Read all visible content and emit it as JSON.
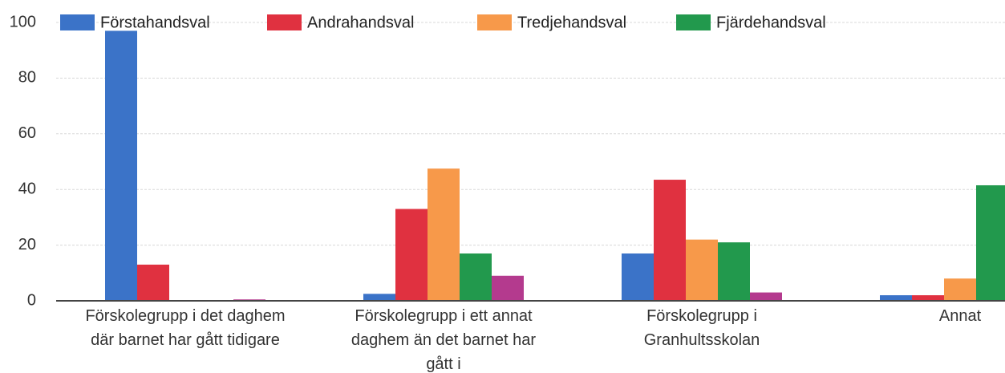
{
  "chart_data": {
    "type": "bar",
    "categories": [
      [
        "Förskolegrupp i det daghem",
        "där barnet har gått tidigare"
      ],
      [
        "Förskolegrupp i ett annat",
        "daghem än det barnet har",
        "gått i"
      ],
      [
        "Förskolegrupp i",
        "Granhultsskolan"
      ],
      [
        "Annat"
      ]
    ],
    "series": [
      {
        "name": "Förstahandsval",
        "color": "#3b73c8",
        "values": [
          97,
          2.5,
          17,
          2
        ]
      },
      {
        "name": "Andrahandsval",
        "color": "#e03140",
        "values": [
          13,
          33,
          43.5,
          2
        ]
      },
      {
        "name": "Tredjehandsval",
        "color": "#f7994a",
        "values": [
          0,
          47.5,
          22,
          8
        ]
      },
      {
        "name": "Fjärdehandsval",
        "color": "#22994d",
        "values": [
          0,
          17,
          21,
          41.5
        ]
      },
      {
        "color": "#b43a8e",
        "values": [
          0.5,
          9,
          3,
          null
        ]
      }
    ],
    "ylim": [
      0,
      100
    ],
    "yticks": [
      0,
      20,
      40,
      60,
      80,
      100
    ],
    "grid": true
  }
}
